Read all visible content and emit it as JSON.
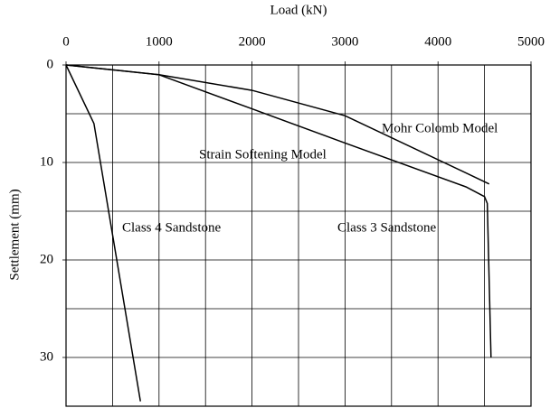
{
  "chart_data": {
    "type": "line",
    "x_label": "Load (kN)",
    "y_label": "Settlement (mm)",
    "xlim": [
      0,
      5000
    ],
    "xticks": [
      0,
      1000,
      2000,
      3000,
      4000,
      5000
    ],
    "xgrid": [
      500,
      1000,
      1500,
      2000,
      2500,
      3000,
      3500,
      4000,
      4500
    ],
    "ylim": [
      0,
      35
    ],
    "yticks": [
      0,
      10,
      20,
      30
    ],
    "ygrid": [
      5,
      10,
      15,
      20,
      25,
      30
    ],
    "y_inverted": true,
    "x_axis_position": "top",
    "grid": true,
    "series": [
      {
        "name": "Class 4 Sandstone",
        "color": "#000000",
        "x": [
          0,
          300,
          800
        ],
        "values": [
          0,
          6,
          34.5
        ]
      },
      {
        "name": "Mohr Colomb Model",
        "color": "#000000",
        "x": [
          0,
          1000,
          2000,
          3000,
          4550
        ],
        "values": [
          0,
          1,
          2.6,
          5.2,
          12.2
        ]
      },
      {
        "name": "Strain Softening Model",
        "color": "#000000",
        "x": [
          0,
          1000,
          2000,
          3000,
          4300,
          4500,
          4530,
          4570
        ],
        "values": [
          0,
          1,
          4.5,
          8,
          12.5,
          13.5,
          14.2,
          30
        ]
      }
    ],
    "annotations": [
      "Class 3 Sandstone"
    ]
  }
}
